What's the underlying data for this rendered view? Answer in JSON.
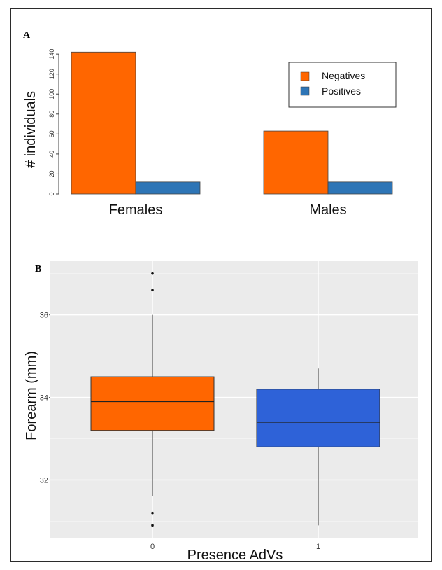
{
  "colors": {
    "negatives": "#ff6600",
    "positives": "#2e75b6",
    "box1": "#2e62d8",
    "panel_bg": "#ebebeb"
  },
  "chart_data": [
    {
      "panel": "A",
      "type": "bar",
      "categories": [
        "Females",
        "Males"
      ],
      "series": [
        {
          "name": "Negatives",
          "values": [
            142,
            63
          ]
        },
        {
          "name": "Positives",
          "values": [
            12,
            12
          ]
        }
      ],
      "ylabel": "# individuals",
      "xlabel": "",
      "yticks": [
        0,
        20,
        40,
        60,
        80,
        100,
        120,
        140
      ],
      "ylim": [
        0,
        145
      ],
      "legend": "top-right",
      "grid": false
    },
    {
      "panel": "B",
      "type": "box",
      "categories": [
        "0",
        "1"
      ],
      "boxes": [
        {
          "x": "0",
          "min": 31.6,
          "q1": 33.2,
          "median": 33.9,
          "q3": 34.5,
          "max": 36.0,
          "outliers": [
            37.0,
            36.6,
            31.2,
            30.9
          ]
        },
        {
          "x": "1",
          "min": 30.9,
          "q1": 32.8,
          "median": 33.4,
          "q3": 34.2,
          "max": 34.7,
          "outliers": []
        }
      ],
      "xlabel": "Presence AdVs",
      "ylabel": "Forearm (mm)",
      "yticks": [
        32,
        34,
        36
      ],
      "ylim": [
        30.6,
        37.3
      ],
      "grid": true,
      "legend": "none"
    }
  ]
}
